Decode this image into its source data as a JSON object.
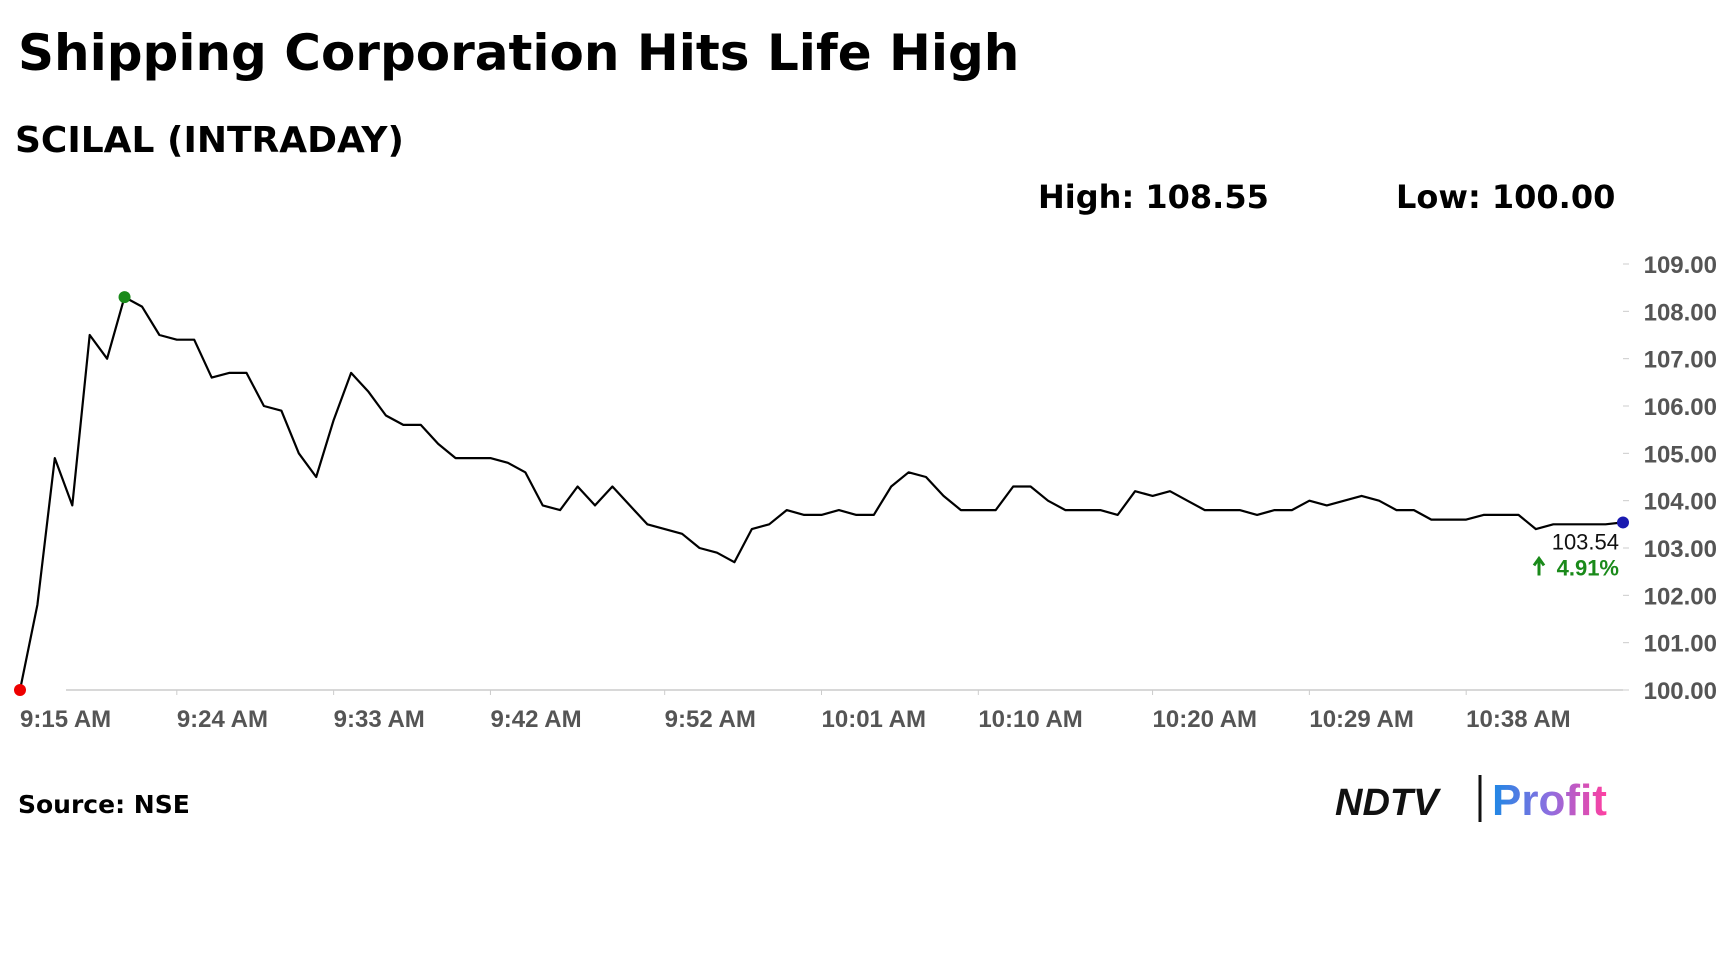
{
  "chart_data": {
    "type": "line",
    "title": "Shipping Corporation Hits Life High",
    "subtitle": "SCILAL (INTRADAY)",
    "high_label": "High: 108.55",
    "low_label": "Low: 100.00",
    "change_label": "4.91%",
    "x": [
      0,
      1,
      2,
      3,
      4,
      5,
      6,
      7,
      8,
      9,
      10,
      11,
      12,
      13,
      14,
      15,
      16,
      17,
      18,
      19,
      20,
      21,
      22,
      23,
      24,
      25,
      26,
      27,
      28,
      29,
      30,
      31,
      32,
      33,
      34,
      35,
      36,
      37,
      38,
      39,
      40,
      41,
      42,
      43,
      44,
      45,
      46,
      47,
      48,
      49,
      50,
      51,
      52,
      53,
      54,
      55,
      56,
      57,
      58,
      59,
      60,
      61,
      62,
      63,
      64,
      65,
      66,
      67,
      68,
      69,
      70,
      71,
      72,
      73,
      74,
      75,
      76,
      77,
      78,
      79,
      80,
      81,
      82,
      83,
      84,
      85,
      86,
      87,
      88,
      89,
      90,
      91,
      92
    ],
    "series": [
      {
        "name": "SCILAL",
        "color": "#000000",
        "values": [
          100.0,
          101.8,
          104.9,
          103.9,
          107.5,
          107.0,
          108.3,
          108.1,
          107.5,
          107.4,
          107.4,
          106.6,
          106.7,
          106.7,
          106.0,
          105.9,
          105.0,
          104.5,
          105.7,
          106.7,
          106.3,
          105.8,
          105.6,
          105.6,
          105.2,
          104.9,
          104.9,
          104.9,
          104.8,
          104.6,
          103.9,
          103.8,
          104.3,
          103.9,
          104.3,
          103.9,
          103.5,
          103.4,
          103.3,
          103.0,
          102.9,
          102.7,
          103.4,
          103.5,
          103.8,
          103.7,
          103.7,
          103.8,
          103.7,
          103.7,
          104.3,
          104.6,
          104.5,
          104.1,
          103.8,
          103.8,
          103.8,
          104.3,
          104.3,
          104.0,
          103.8,
          103.8,
          103.8,
          103.7,
          104.2,
          104.1,
          104.2,
          104.0,
          103.8,
          103.8,
          103.8,
          103.7,
          103.8,
          103.8,
          104.0,
          103.9,
          104.0,
          104.1,
          104.0,
          103.8,
          103.8,
          103.6,
          103.6,
          103.6,
          103.7,
          103.7,
          103.7,
          103.4,
          103.5,
          103.5,
          103.5,
          103.5,
          103.54
        ]
      }
    ],
    "xlim": [
      0,
      92
    ],
    "xticks": [
      {
        "value": 0,
        "label": "9:15 AM"
      },
      {
        "value": 9,
        "label": "9:24 AM"
      },
      {
        "value": 18,
        "label": "9:33 AM"
      },
      {
        "value": 27,
        "label": "9:42 AM"
      },
      {
        "value": 37,
        "label": "9:52 AM"
      },
      {
        "value": 46,
        "label": "10:01 AM"
      },
      {
        "value": 55,
        "label": "10:10 AM"
      },
      {
        "value": 65,
        "label": "10:20 AM"
      },
      {
        "value": 74,
        "label": "10:29 AM"
      },
      {
        "value": 83,
        "label": "10:38 AM"
      }
    ],
    "ylim": [
      100,
      109
    ],
    "yticks": [
      {
        "value": 100,
        "label": "100.00"
      },
      {
        "value": 101,
        "label": "101.00"
      },
      {
        "value": 102,
        "label": "102.00"
      },
      {
        "value": 103,
        "label": "103.00"
      },
      {
        "value": 104,
        "label": "104.00"
      },
      {
        "value": 105,
        "label": "105.00"
      },
      {
        "value": 106,
        "label": "106.00"
      },
      {
        "value": 107,
        "label": "107.00"
      },
      {
        "value": 108,
        "label": "108.00"
      },
      {
        "value": 109,
        "label": "109.00"
      }
    ],
    "grid": false
  },
  "footer": {
    "source": "Source: NSE",
    "logo_left": "NDTV",
    "logo_right": "Profit"
  }
}
